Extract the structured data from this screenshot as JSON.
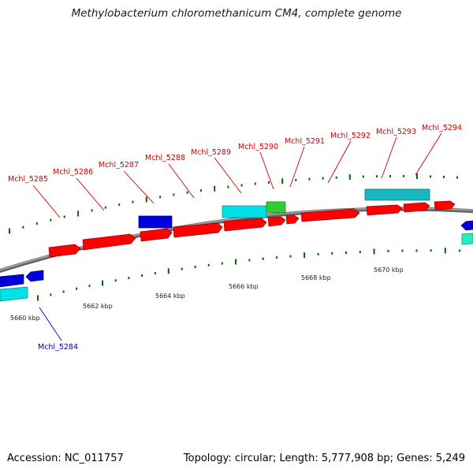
{
  "title": "Methylobacterium chloromethanicum CM4, complete genome",
  "footer": {
    "accession": "Accession: NC_011757",
    "info": "Topology: circular; Length: 5,777,908 bp; Genes: 5,249"
  },
  "colors": {
    "forward_gene": "#ff0000",
    "reverse_gene": "#0000dd",
    "cyan_feature": "#00e0e8",
    "teal_feature": "#17b8c0",
    "green_feature": "#33cc33",
    "backbone": "#888888",
    "tick": "#006600",
    "forward_label": "#cc0000",
    "reverse_label": "#000099"
  },
  "scale_labels": [
    "5660 kbp",
    "5662 kbp",
    "5664 kbp",
    "5666 kbp",
    "5668 kbp",
    "5670 kbp"
  ],
  "gene_labels": [
    "Mchl_5284",
    "Mchl_5285",
    "Mchl_5286",
    "Mchl_5287",
    "Mchl_5288",
    "Mchl_5289",
    "Mchl_5290",
    "Mchl_5291",
    "Mchl_5292",
    "Mchl_5293",
    "Mchl_5294"
  ]
}
